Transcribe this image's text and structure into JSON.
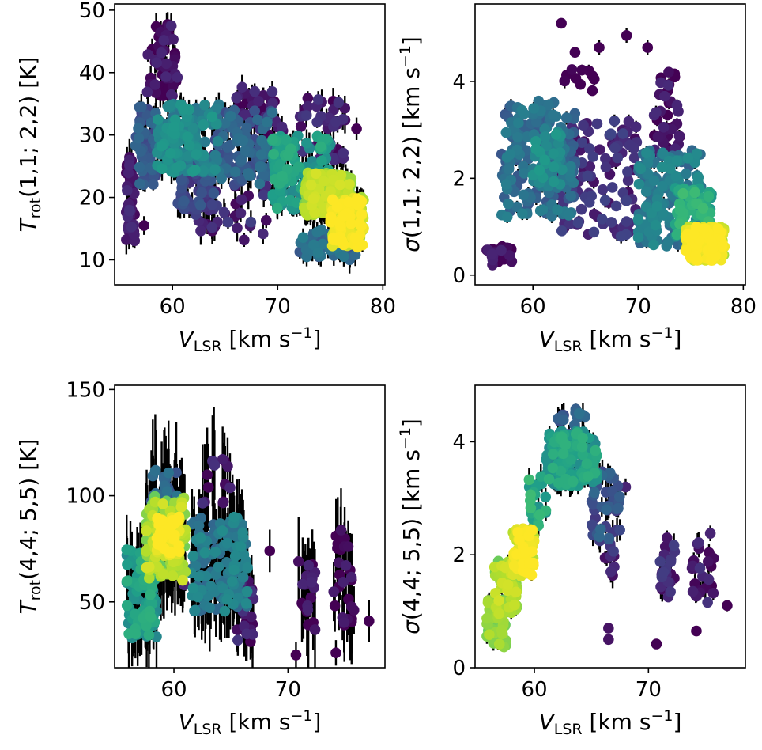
{
  "chart_data": [
    {
      "id": "tr12",
      "type": "scatter",
      "xlabel": {
        "main": "V",
        "sub": "LSR",
        "unit": " [km s",
        "sup": "−1",
        "close": "]"
      },
      "ylabel": {
        "main": "T",
        "sub": "rot",
        "rest": "(1,1; 2,2) [K]"
      },
      "xlim": [
        54.5,
        80.2
      ],
      "ylim": [
        6,
        51
      ],
      "xticks": [
        60,
        70,
        80
      ],
      "yticks": [
        10,
        20,
        30,
        40,
        50
      ],
      "colormap": "viridis",
      "error_bars": true,
      "clusters": [
        {
          "x": [
            55.6,
            56.4
          ],
          "y": [
            13,
            27
          ],
          "n": 45,
          "density": 0.05,
          "err": 2.0
        },
        {
          "x": [
            56.5,
            58.5
          ],
          "y": [
            22,
            36
          ],
          "n": 55,
          "density": 0.25,
          "err": 1.5
        },
        {
          "x": [
            57.5,
            60.5
          ],
          "y": [
            36,
            48
          ],
          "n": 60,
          "density": 0.02,
          "err": 1.5
        },
        {
          "x": [
            58.5,
            64.5
          ],
          "y": [
            24,
            35
          ],
          "n": 160,
          "density": 0.45,
          "err": 1.5
        },
        {
          "x": [
            60.5,
            64.0
          ],
          "y": [
            18,
            27
          ],
          "n": 60,
          "density": 0.2,
          "err": 1.5
        },
        {
          "x": [
            64.0,
            69.5
          ],
          "y": [
            22,
            34
          ],
          "n": 110,
          "density": 0.3,
          "err": 1.5
        },
        {
          "x": [
            66.0,
            70.5
          ],
          "y": [
            30,
            38
          ],
          "n": 40,
          "density": 0.06,
          "err": 1.5
        },
        {
          "x": [
            69.5,
            75.0
          ],
          "y": [
            18,
            30
          ],
          "n": 150,
          "density": 0.55,
          "err": 1.5
        },
        {
          "x": [
            72.0,
            76.5
          ],
          "y": [
            26,
            36
          ],
          "n": 45,
          "density": 0.08,
          "err": 1.5
        },
        {
          "x": [
            72.5,
            77.0
          ],
          "y": [
            17,
            24
          ],
          "n": 180,
          "density": 0.85,
          "err": 1.5
        },
        {
          "x": [
            75.0,
            78.2
          ],
          "y": [
            12,
            20
          ],
          "n": 140,
          "density": 0.95,
          "err": 1.5
        },
        {
          "x": [
            72.0,
            77.5
          ],
          "y": [
            10,
            15
          ],
          "n": 50,
          "density": 0.35,
          "err": 1.5
        },
        {
          "x": [
            62.0,
            70.0
          ],
          "y": [
            13,
            22
          ],
          "n": 35,
          "density": 0.1,
          "err": 1.5
        }
      ],
      "points": [
        {
          "x": 77.5,
          "y": 31,
          "density": 0.0,
          "err": 1.8
        },
        {
          "x": 57.3,
          "y": 15.5,
          "density": 0.0,
          "err": 1.5
        }
      ]
    },
    {
      "id": "s12",
      "type": "scatter",
      "xlabel": {
        "main": "V",
        "sub": "LSR",
        "unit": " [km s",
        "sup": "−1",
        "close": "]"
      },
      "ylabel": {
        "main": "σ",
        "sub": "",
        "rest": "(1,1; 2,2) [km s",
        "sup": "−1",
        "close": "]"
      },
      "xlim": [
        54.5,
        80.2
      ],
      "ylim": [
        -0.2,
        5.6
      ],
      "xticks": [
        60,
        70,
        80
      ],
      "yticks": [
        0,
        2,
        4
      ],
      "colormap": "viridis",
      "error_bars": true,
      "clusters": [
        {
          "x": [
            55.5,
            58.0
          ],
          "y": [
            0.2,
            0.6
          ],
          "n": 25,
          "density": 0.02,
          "err": 0.05
        },
        {
          "x": [
            57.0,
            64.0
          ],
          "y": [
            1.2,
            3.6
          ],
          "n": 190,
          "density": 0.35,
          "err": 0.1
        },
        {
          "x": [
            60.0,
            63.0
          ],
          "y": [
            1.8,
            3.0
          ],
          "n": 60,
          "density": 0.45,
          "err": 0.1
        },
        {
          "x": [
            62.5,
            70.0
          ],
          "y": [
            0.8,
            3.2
          ],
          "n": 110,
          "density": 0.12,
          "err": 0.1
        },
        {
          "x": [
            63.0,
            66.0
          ],
          "y": [
            3.8,
            4.6
          ],
          "n": 10,
          "density": 0.0,
          "err": 0.1
        },
        {
          "x": [
            70.0,
            76.0
          ],
          "y": [
            0.6,
            2.6
          ],
          "n": 170,
          "density": 0.4,
          "err": 0.1
        },
        {
          "x": [
            71.5,
            74.0
          ],
          "y": [
            2.4,
            4.2
          ],
          "n": 40,
          "density": 0.03,
          "err": 0.1
        },
        {
          "x": [
            74.5,
            78.2
          ],
          "y": [
            0.3,
            1.0
          ],
          "n": 180,
          "density": 0.95,
          "err": 0.05
        },
        {
          "x": [
            73.5,
            77.0
          ],
          "y": [
            0.8,
            1.8
          ],
          "n": 80,
          "density": 0.6,
          "err": 0.08
        }
      ],
      "points": [
        {
          "x": 62.7,
          "y": 5.2,
          "density": 0.0,
          "err": 0.1
        },
        {
          "x": 68.9,
          "y": 4.95,
          "density": 0.0,
          "err": 0.15
        },
        {
          "x": 70.9,
          "y": 4.7,
          "density": 0.0,
          "err": 0.15
        },
        {
          "x": 66.3,
          "y": 4.7,
          "density": 0.0,
          "err": 0.15
        },
        {
          "x": 64.0,
          "y": 4.6,
          "density": 0.0,
          "err": 0.1
        }
      ]
    },
    {
      "id": "tr45",
      "type": "scatter",
      "xlabel": {
        "main": "V",
        "sub": "LSR",
        "unit": " [km s",
        "sup": "−1",
        "close": "]"
      },
      "ylabel": {
        "main": "T",
        "sub": "rot",
        "rest": "(4,4; 5,5) [K]"
      },
      "xlim": [
        54.8,
        78.5
      ],
      "ylim": [
        19,
        152
      ],
      "xticks": [
        60,
        70
      ],
      "yticks": [
        50,
        100,
        150
      ],
      "colormap": "viridis",
      "error_bars": true,
      "clusters": [
        {
          "x": [
            55.8,
            58.5
          ],
          "y": [
            32,
            75
          ],
          "n": 110,
          "density": 0.55,
          "err": 12
        },
        {
          "x": [
            57.5,
            61.0
          ],
          "y": [
            60,
            100
          ],
          "n": 130,
          "density": 0.85,
          "err": 15
        },
        {
          "x": [
            58.5,
            60.5
          ],
          "y": [
            72,
            90
          ],
          "n": 80,
          "density": 0.98,
          "err": 12
        },
        {
          "x": [
            58.0,
            60.5
          ],
          "y": [
            95,
            112
          ],
          "n": 25,
          "density": 0.3,
          "err": 20
        },
        {
          "x": [
            61.5,
            66.5
          ],
          "y": [
            45,
            90
          ],
          "n": 140,
          "density": 0.4,
          "err": 15
        },
        {
          "x": [
            62.5,
            65.0
          ],
          "y": [
            95,
            118
          ],
          "n": 15,
          "density": 0.05,
          "err": 20
        },
        {
          "x": [
            65.5,
            67.0
          ],
          "y": [
            28,
            60
          ],
          "n": 25,
          "density": 0.08,
          "err": 12
        },
        {
          "x": [
            70.8,
            72.5
          ],
          "y": [
            35,
            70
          ],
          "n": 25,
          "density": 0.02,
          "err": 15
        },
        {
          "x": [
            74.0,
            75.8
          ],
          "y": [
            35,
            85
          ],
          "n": 28,
          "density": 0.02,
          "err": 15
        }
      ],
      "points": [
        {
          "x": 68.4,
          "y": 74,
          "density": 0.0,
          "err": 10
        },
        {
          "x": 77.1,
          "y": 41,
          "density": 0.0,
          "err": 10
        },
        {
          "x": 70.7,
          "y": 25,
          "density": 0.0,
          "err": 6
        },
        {
          "x": 74.2,
          "y": 26,
          "density": 0.0,
          "err": 6
        },
        {
          "x": 60.9,
          "y": 58,
          "density": 0.1,
          "err": 8
        }
      ]
    },
    {
      "id": "s45",
      "type": "scatter",
      "xlabel": {
        "main": "V",
        "sub": "LSR",
        "unit": " [km s",
        "sup": "−1",
        "close": "]"
      },
      "ylabel": {
        "main": "σ",
        "sub": "",
        "rest": "(4,4; 5,5) [km s",
        "sup": "−1",
        "close": "]"
      },
      "xlim": [
        54.8,
        78.5
      ],
      "ylim": [
        0,
        5.0
      ],
      "xticks": [
        60,
        70
      ],
      "yticks": [
        0,
        2,
        4
      ],
      "colormap": "viridis",
      "error_bars": true,
      "clusters": [
        {
          "x": [
            55.8,
            57.5
          ],
          "y": [
            0.35,
            1.2
          ],
          "n": 70,
          "density": 0.8,
          "err": 0.1
        },
        {
          "x": [
            56.5,
            58.5
          ],
          "y": [
            0.9,
            1.9
          ],
          "n": 80,
          "density": 0.85,
          "err": 0.1
        },
        {
          "x": [
            58.0,
            60.0
          ],
          "y": [
            1.6,
            2.5
          ],
          "n": 80,
          "density": 0.95,
          "err": 0.1
        },
        {
          "x": [
            59.5,
            61.0
          ],
          "y": [
            2.5,
            3.4
          ],
          "n": 25,
          "density": 0.6,
          "err": 0.15
        },
        {
          "x": [
            61.0,
            65.5
          ],
          "y": [
            3.2,
            4.2
          ],
          "n": 150,
          "density": 0.55,
          "err": 0.15
        },
        {
          "x": [
            62.0,
            64.5
          ],
          "y": [
            4.0,
            4.6
          ],
          "n": 20,
          "density": 0.3,
          "err": 0.15
        },
        {
          "x": [
            65.0,
            67.5
          ],
          "y": [
            2.2,
            3.5
          ],
          "n": 45,
          "density": 0.25,
          "err": 0.15
        },
        {
          "x": [
            66.0,
            67.5
          ],
          "y": [
            1.6,
            2.2
          ],
          "n": 10,
          "density": 0.1,
          "err": 0.15
        },
        {
          "x": [
            71.0,
            72.3
          ],
          "y": [
            1.2,
            2.3
          ],
          "n": 25,
          "density": 0.1,
          "err": 0.15
        },
        {
          "x": [
            73.8,
            75.8
          ],
          "y": [
            1.0,
            2.5
          ],
          "n": 25,
          "density": 0.08,
          "err": 0.15
        }
      ],
      "points": [
        {
          "x": 66.5,
          "y": 0.7,
          "density": 0.05,
          "err": 0.05
        },
        {
          "x": 66.5,
          "y": 0.5,
          "density": 0.05,
          "err": 0.05
        },
        {
          "x": 70.7,
          "y": 0.42,
          "density": 0.0,
          "err": 0.05
        },
        {
          "x": 74.2,
          "y": 0.65,
          "density": 0.0,
          "err": 0.05
        },
        {
          "x": 76.9,
          "y": 1.1,
          "density": 0.0,
          "err": 0.1
        },
        {
          "x": 68.0,
          "y": 3.2,
          "density": 0.1,
          "err": 0.15
        }
      ]
    }
  ]
}
